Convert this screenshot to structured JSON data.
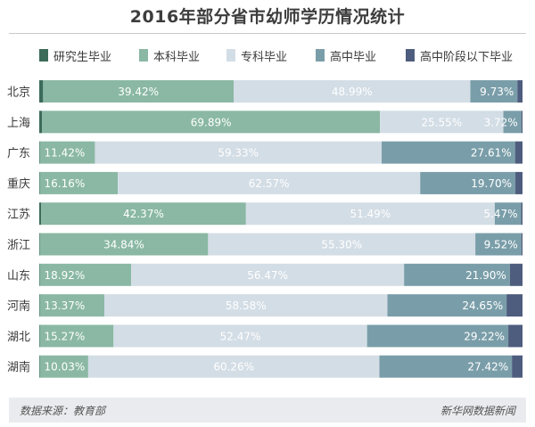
{
  "chart_data": {
    "type": "bar",
    "orientation": "horizontal",
    "stacked": true,
    "percent": true,
    "title": "2016年部分省市幼师学历情况统计",
    "categories": [
      "北京",
      "上海",
      "广东",
      "重庆",
      "江苏",
      "浙江",
      "山东",
      "河南",
      "湖北",
      "湖南"
    ],
    "series": [
      {
        "name": "研究生毕业",
        "color": "#3c6b5a",
        "values": [
          0.8,
          0.6,
          0.1,
          0.1,
          0.4,
          0.1,
          0.1,
          0.1,
          0.1,
          0.1
        ]
      },
      {
        "name": "本科毕业",
        "color": "#8ab8a4",
        "values": [
          39.42,
          69.89,
          11.42,
          16.16,
          42.37,
          34.84,
          18.92,
          13.37,
          15.27,
          10.03
        ]
      },
      {
        "name": "专科毕业",
        "color": "#d3dde5",
        "values": [
          48.99,
          25.55,
          59.33,
          62.57,
          51.49,
          55.3,
          56.47,
          58.58,
          52.47,
          60.26
        ]
      },
      {
        "name": "高中毕业",
        "color": "#7a9ea9",
        "values": [
          9.73,
          3.72,
          27.61,
          19.7,
          5.47,
          9.52,
          21.9,
          24.65,
          29.22,
          27.42
        ]
      },
      {
        "name": "高中阶段以下毕业",
        "color": "#4e5d7e",
        "values": [
          1.06,
          0.24,
          1.54,
          1.47,
          0.27,
          0.24,
          2.61,
          3.3,
          2.94,
          2.19
        ]
      }
    ],
    "labels": {
      "本科毕业": [
        "39.42%",
        "69.89%",
        "11.42%",
        "16.16%",
        "42.37%",
        "34.84%",
        "18.92%",
        "13.37%",
        "15.27%",
        "10.03%"
      ],
      "专科毕业": [
        "48.99%",
        "25.55%",
        "59.33%",
        "62.57%",
        "51.49%",
        "55.30%",
        "56.47%",
        "58.58%",
        "52.47%",
        "60.26%"
      ],
      "高中毕业": [
        "9.73%",
        "3.72%",
        "27.61%",
        "19.70%",
        "5.47%",
        "9.52%",
        "21.90%",
        "24.65%",
        "29.22%",
        "27.42%"
      ]
    },
    "xlim": [
      0,
      100
    ],
    "legend_position": "top"
  },
  "footer": {
    "source": "数据来源：教育部",
    "credit": "新华网数据新闻"
  }
}
